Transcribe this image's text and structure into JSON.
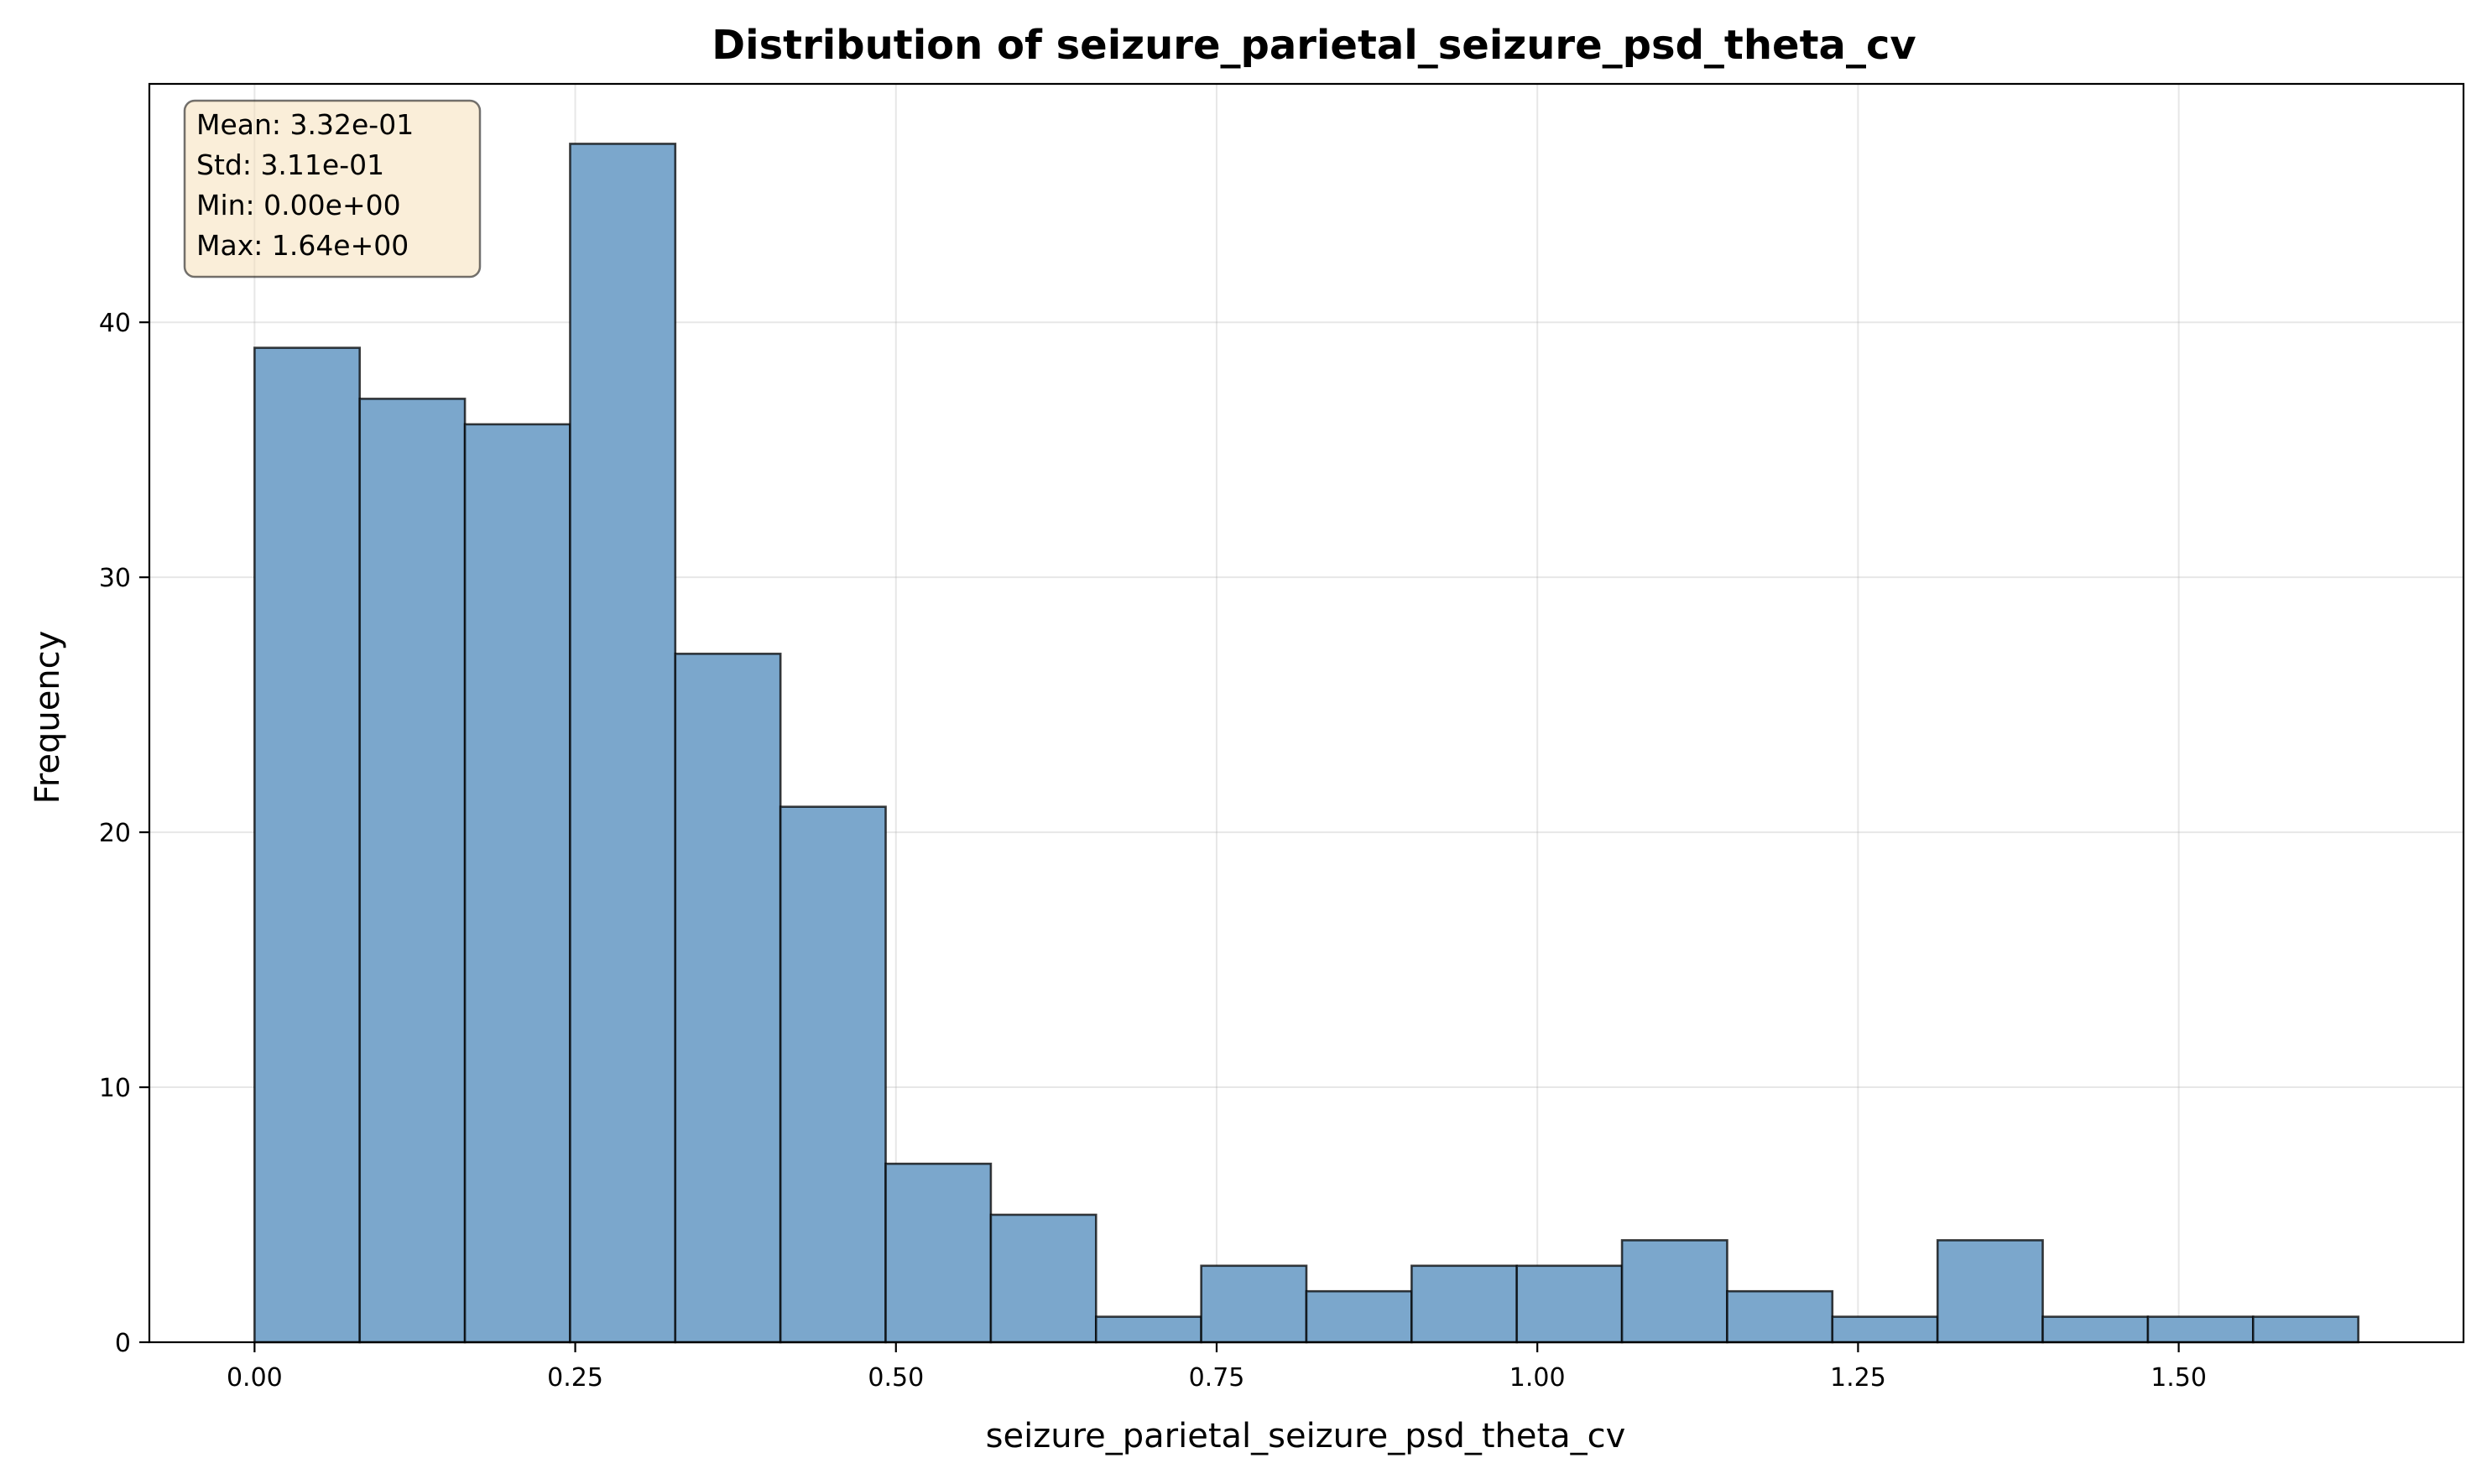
{
  "chart_data": {
    "type": "bar",
    "title": "Distribution of seizure_parietal_seizure_psd_theta_cv",
    "xlabel": "seizure_parietal_seizure_psd_theta_cv",
    "ylabel": "Frequency",
    "xlim": [
      -0.082,
      1.722
    ],
    "ylim": [
      0,
      49.35
    ],
    "grid": true,
    "bar_color": "#7ba7cc",
    "edge_color": "#000000",
    "bins": {
      "start": 0.0,
      "width": 0.082,
      "counts": [
        39,
        37,
        36,
        47,
        27,
        21,
        7,
        5,
        1,
        3,
        2,
        3,
        3,
        4,
        2,
        1,
        4,
        1,
        1,
        1
      ]
    },
    "x_ticks": [
      {
        "value": 0.0,
        "label": "0.00"
      },
      {
        "value": 0.25,
        "label": "0.25"
      },
      {
        "value": 0.5,
        "label": "0.50"
      },
      {
        "value": 0.75,
        "label": "0.75"
      },
      {
        "value": 1.0,
        "label": "1.00"
      },
      {
        "value": 1.25,
        "label": "1.25"
      },
      {
        "value": 1.5,
        "label": "1.50"
      }
    ],
    "y_ticks": [
      {
        "value": 0,
        "label": "0"
      },
      {
        "value": 10,
        "label": "10"
      },
      {
        "value": 20,
        "label": "20"
      },
      {
        "value": 30,
        "label": "30"
      },
      {
        "value": 40,
        "label": "40"
      }
    ],
    "stats_box": {
      "placement": "top-left",
      "background": "#f5deb3",
      "lines": [
        "Mean: 3.32e-01",
        "Std: 3.11e-01",
        "Min: 0.00e+00",
        "Max: 1.64e+00"
      ]
    }
  }
}
